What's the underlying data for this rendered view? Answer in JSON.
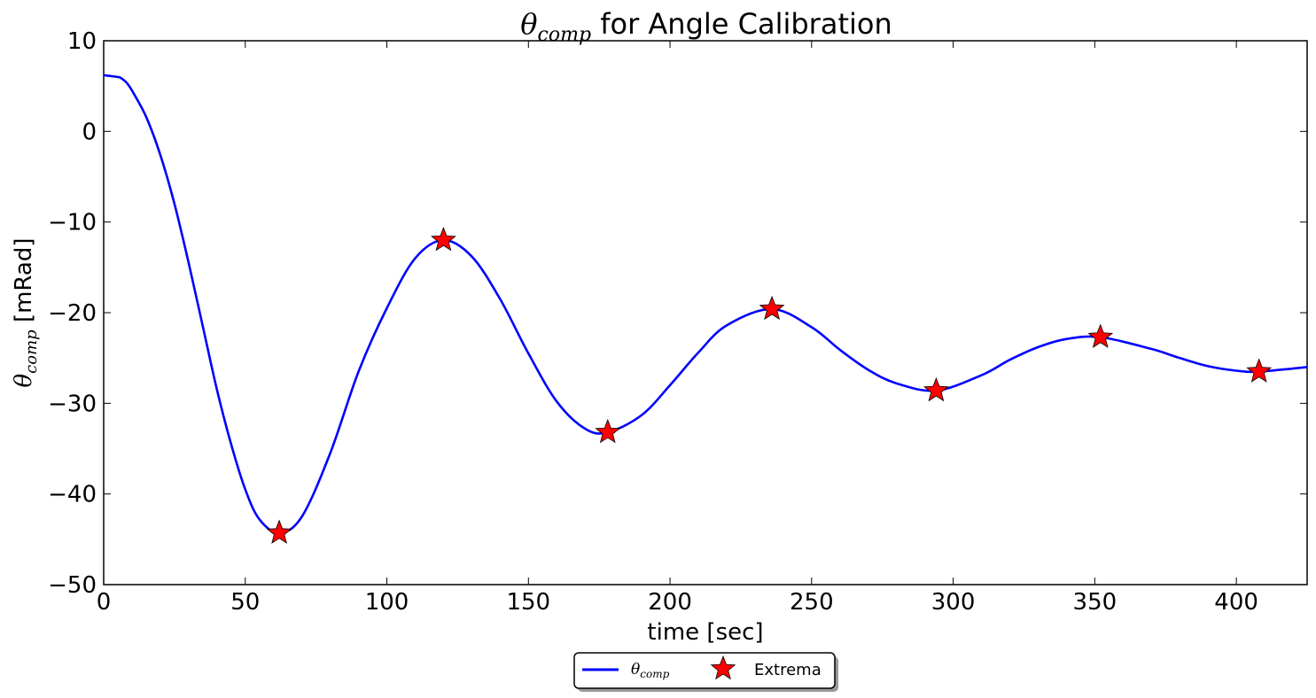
{
  "chart_data": {
    "type": "line",
    "title": {
      "symbol": "θ",
      "subscript": "comp",
      "text": " for Angle Calibration"
    },
    "xlabel": "time [sec]",
    "ylabel": {
      "symbol": "θ",
      "subscript": "comp",
      "text": " [mRad]"
    },
    "xlim": [
      0,
      425
    ],
    "ylim": [
      -50,
      10
    ],
    "xticks": [
      0,
      50,
      100,
      150,
      200,
      250,
      300,
      350,
      400
    ],
    "yticks": [
      10,
      0,
      -10,
      -20,
      -30,
      -40,
      -50
    ],
    "grid": false,
    "legend_position": "below-center",
    "series": [
      {
        "name": {
          "symbol": "θ",
          "subscript": "comp"
        },
        "kind": "line",
        "color": "#0000ff",
        "x": [
          0,
          5,
          6,
          8,
          10,
          15,
          20,
          25,
          30,
          35,
          40,
          45,
          50,
          55,
          62,
          70,
          80,
          90,
          100,
          110,
          120,
          130,
          140,
          150,
          160,
          170,
          178,
          190,
          200,
          210,
          220,
          236,
          250,
          260,
          270,
          280,
          294,
          310,
          320,
          330,
          340,
          352,
          370,
          380,
          390,
          400,
          408,
          425
        ],
        "y": [
          6.2,
          6.0,
          5.9,
          5.4,
          4.5,
          1.6,
          -2.6,
          -8.0,
          -14.5,
          -21.5,
          -28.5,
          -34.5,
          -39.5,
          -42.8,
          -44.3,
          -42.5,
          -35.5,
          -26.5,
          -19.5,
          -14.0,
          -12.0,
          -13.8,
          -18.5,
          -24.5,
          -29.8,
          -32.8,
          -33.2,
          -31.3,
          -28.0,
          -24.4,
          -21.4,
          -19.6,
          -21.6,
          -24.1,
          -26.3,
          -27.8,
          -28.6,
          -26.9,
          -25.2,
          -23.8,
          -22.9,
          -22.7,
          -24.0,
          -25.0,
          -25.9,
          -26.4,
          -26.5,
          -26.0
        ]
      },
      {
        "name": "Extrema",
        "kind": "marker",
        "marker": "star",
        "color": "#ff0000",
        "x": [
          62,
          120,
          178,
          236,
          294,
          352,
          408
        ],
        "y": [
          -44.3,
          -12.0,
          -33.2,
          -19.6,
          -28.6,
          -22.7,
          -26.5
        ]
      }
    ]
  }
}
